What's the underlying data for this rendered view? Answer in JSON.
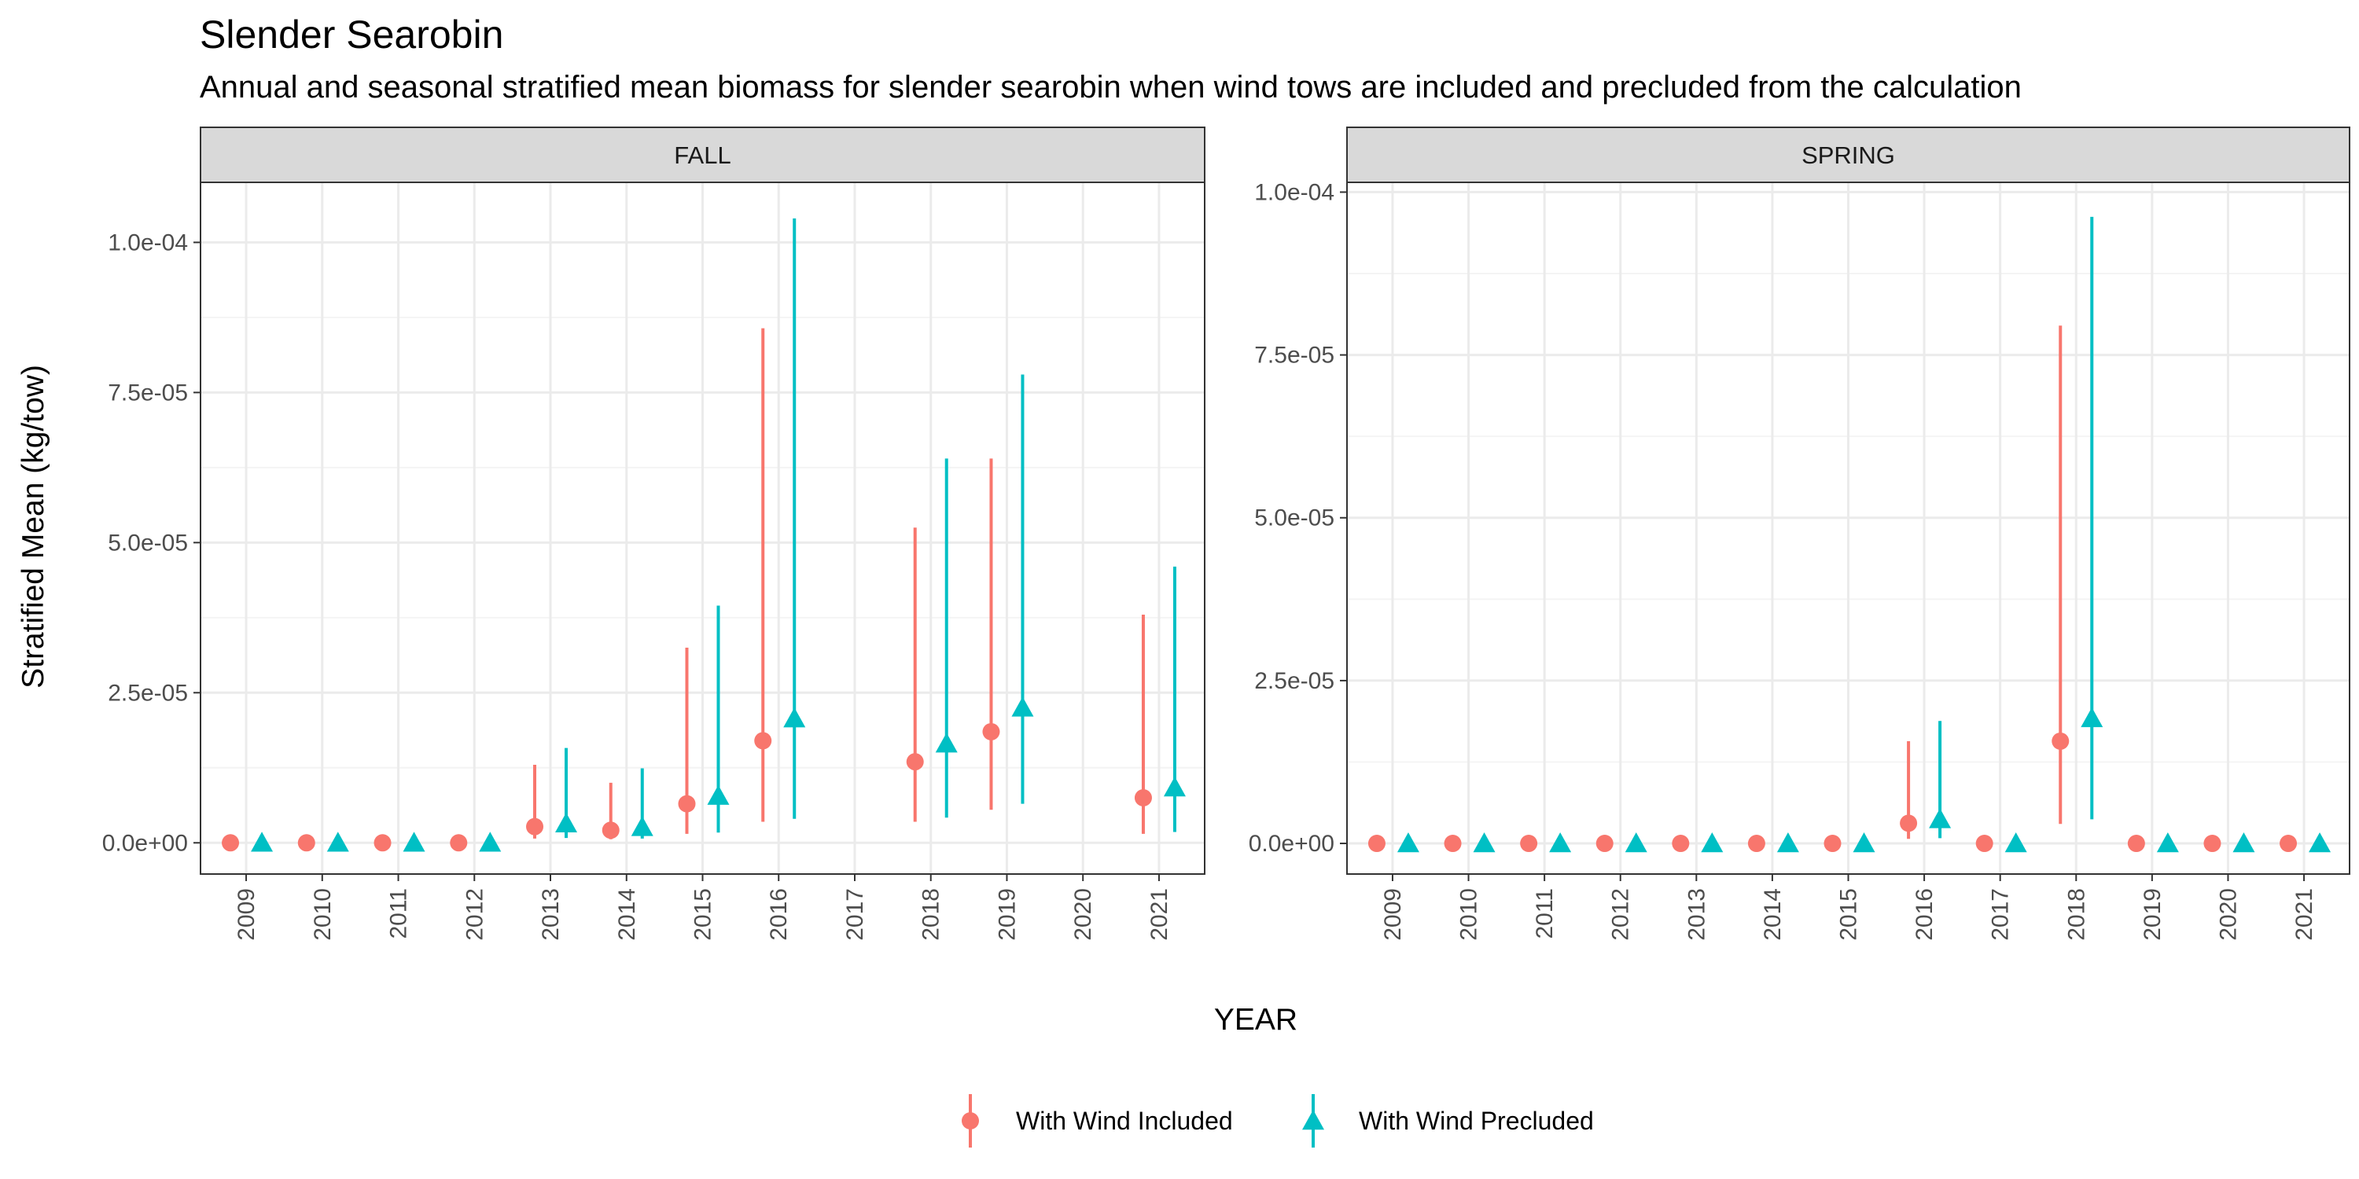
{
  "title": "Slender Searobin",
  "subtitle": "Annual and seasonal stratified mean biomass for slender searobin when wind tows are included and precluded from the calculation",
  "colors": {
    "included": "#F8766D",
    "precluded": "#00BFC4",
    "strip_fill": "#D9D9D9",
    "grid": "#EBEBEB",
    "border": "#333333"
  },
  "chart_data": {
    "type": "scatter",
    "title": "Slender Searobin",
    "subtitle": "Annual and seasonal stratified mean biomass for slender searobin when wind tows are included and precluded from the calculation",
    "xlabel": "YEAR",
    "ylabel": "Stratified Mean (kg/tow)",
    "grid": true,
    "legend_position": "bottom",
    "series_names": [
      "With Wind Included",
      "With Wind Precluded"
    ],
    "panels": [
      {
        "name": "FALL",
        "categories": [
          "2009",
          "2010",
          "2011",
          "2012",
          "2013",
          "2014",
          "2015",
          "2016",
          "2017",
          "2018",
          "2019",
          "2020",
          "2021"
        ],
        "ylim": [
          -5.2e-06,
          0.00011
        ],
        "yticks": [
          0,
          2.5e-05,
          5e-05,
          7.5e-05,
          0.0001
        ],
        "yticklabels": [
          "0.0e+00",
          "2.5e-05",
          "5.0e-05",
          "7.5e-05",
          "1.0e-04"
        ],
        "series": [
          {
            "name": "With Wind Included",
            "points": [
              {
                "x": "2009",
                "y": 0,
                "lo": 0,
                "hi": 0
              },
              {
                "x": "2010",
                "y": 0,
                "lo": 0,
                "hi": 0
              },
              {
                "x": "2011",
                "y": 0,
                "lo": 0,
                "hi": 0
              },
              {
                "x": "2012",
                "y": 0,
                "lo": 0,
                "hi": 0
              },
              {
                "x": "2013",
                "y": 2.7e-06,
                "lo": 7e-07,
                "hi": 1.3e-05
              },
              {
                "x": "2014",
                "y": 2.1e-06,
                "lo": 6e-07,
                "hi": 1e-05
              },
              {
                "x": "2015",
                "y": 6.5e-06,
                "lo": 1.5e-06,
                "hi": 3.25e-05
              },
              {
                "x": "2016",
                "y": 1.7e-05,
                "lo": 3.5e-06,
                "hi": 8.57e-05
              },
              {
                "x": "2018",
                "y": 1.35e-05,
                "lo": 3.5e-06,
                "hi": 5.25e-05
              },
              {
                "x": "2019",
                "y": 1.85e-05,
                "lo": 5.5e-06,
                "hi": 6.4e-05
              },
              {
                "x": "2021",
                "y": 7.5e-06,
                "lo": 1.5e-06,
                "hi": 3.8e-05
              }
            ]
          },
          {
            "name": "With Wind Precluded",
            "points": [
              {
                "x": "2009",
                "y": 0,
                "lo": 0,
                "hi": 0
              },
              {
                "x": "2010",
                "y": 0,
                "lo": 0,
                "hi": 0
              },
              {
                "x": "2011",
                "y": 0,
                "lo": 0,
                "hi": 0
              },
              {
                "x": "2012",
                "y": 0,
                "lo": 0,
                "hi": 0
              },
              {
                "x": "2013",
                "y": 3.2e-06,
                "lo": 8e-07,
                "hi": 1.58e-05
              },
              {
                "x": "2014",
                "y": 2.6e-06,
                "lo": 7e-07,
                "hi": 1.24e-05
              },
              {
                "x": "2015",
                "y": 7.8e-06,
                "lo": 1.7e-06,
                "hi": 3.95e-05
              },
              {
                "x": "2016",
                "y": 2.07e-05,
                "lo": 4e-06,
                "hi": 0.000104
              },
              {
                "x": "2018",
                "y": 1.65e-05,
                "lo": 4.2e-06,
                "hi": 6.4e-05
              },
              {
                "x": "2019",
                "y": 2.25e-05,
                "lo": 6.5e-06,
                "hi": 7.8e-05
              },
              {
                "x": "2021",
                "y": 9.2e-06,
                "lo": 1.8e-06,
                "hi": 4.6e-05
              }
            ]
          }
        ]
      },
      {
        "name": "SPRING",
        "categories": [
          "2009",
          "2010",
          "2011",
          "2012",
          "2013",
          "2014",
          "2015",
          "2016",
          "2017",
          "2018",
          "2019",
          "2020",
          "2021"
        ],
        "ylim": [
          -4.7e-06,
          0.0001015
        ],
        "yticks": [
          0,
          2.5e-05,
          5e-05,
          7.5e-05,
          0.0001
        ],
        "yticklabels": [
          "0.0e+00",
          "2.5e-05",
          "5.0e-05",
          "7.5e-05",
          "1.0e-04"
        ],
        "series": [
          {
            "name": "With Wind Included",
            "points": [
              {
                "x": "2009",
                "y": 0,
                "lo": 0,
                "hi": 0
              },
              {
                "x": "2010",
                "y": 0,
                "lo": 0,
                "hi": 0
              },
              {
                "x": "2011",
                "y": 0,
                "lo": 0,
                "hi": 0
              },
              {
                "x": "2012",
                "y": 0,
                "lo": 0,
                "hi": 0
              },
              {
                "x": "2013",
                "y": 0,
                "lo": 0,
                "hi": 0
              },
              {
                "x": "2014",
                "y": 0,
                "lo": 0,
                "hi": 0
              },
              {
                "x": "2015",
                "y": 0,
                "lo": 0,
                "hi": 0
              },
              {
                "x": "2016",
                "y": 3.1e-06,
                "lo": 7e-07,
                "hi": 1.57e-05
              },
              {
                "x": "2017",
                "y": 0,
                "lo": 0,
                "hi": 0
              },
              {
                "x": "2018",
                "y": 1.57e-05,
                "lo": 3e-06,
                "hi": 7.95e-05
              },
              {
                "x": "2019",
                "y": 0,
                "lo": 0,
                "hi": 0
              },
              {
                "x": "2020",
                "y": 0,
                "lo": 0,
                "hi": 0
              },
              {
                "x": "2021",
                "y": 0,
                "lo": 0,
                "hi": 0
              }
            ]
          },
          {
            "name": "With Wind Precluded",
            "points": [
              {
                "x": "2009",
                "y": 0,
                "lo": 0,
                "hi": 0
              },
              {
                "x": "2010",
                "y": 0,
                "lo": 0,
                "hi": 0
              },
              {
                "x": "2011",
                "y": 0,
                "lo": 0,
                "hi": 0
              },
              {
                "x": "2012",
                "y": 0,
                "lo": 0,
                "hi": 0
              },
              {
                "x": "2013",
                "y": 0,
                "lo": 0,
                "hi": 0
              },
              {
                "x": "2014",
                "y": 0,
                "lo": 0,
                "hi": 0
              },
              {
                "x": "2015",
                "y": 0,
                "lo": 0,
                "hi": 0
              },
              {
                "x": "2016",
                "y": 3.7e-06,
                "lo": 8e-07,
                "hi": 1.88e-05
              },
              {
                "x": "2017",
                "y": 0,
                "lo": 0,
                "hi": 0
              },
              {
                "x": "2018",
                "y": 1.92e-05,
                "lo": 3.7e-06,
                "hi": 9.62e-05
              },
              {
                "x": "2019",
                "y": 0,
                "lo": 0,
                "hi": 0
              },
              {
                "x": "2020",
                "y": 0,
                "lo": 0,
                "hi": 0
              },
              {
                "x": "2021",
                "y": 0,
                "lo": 0,
                "hi": 0
              }
            ]
          }
        ]
      }
    ]
  }
}
